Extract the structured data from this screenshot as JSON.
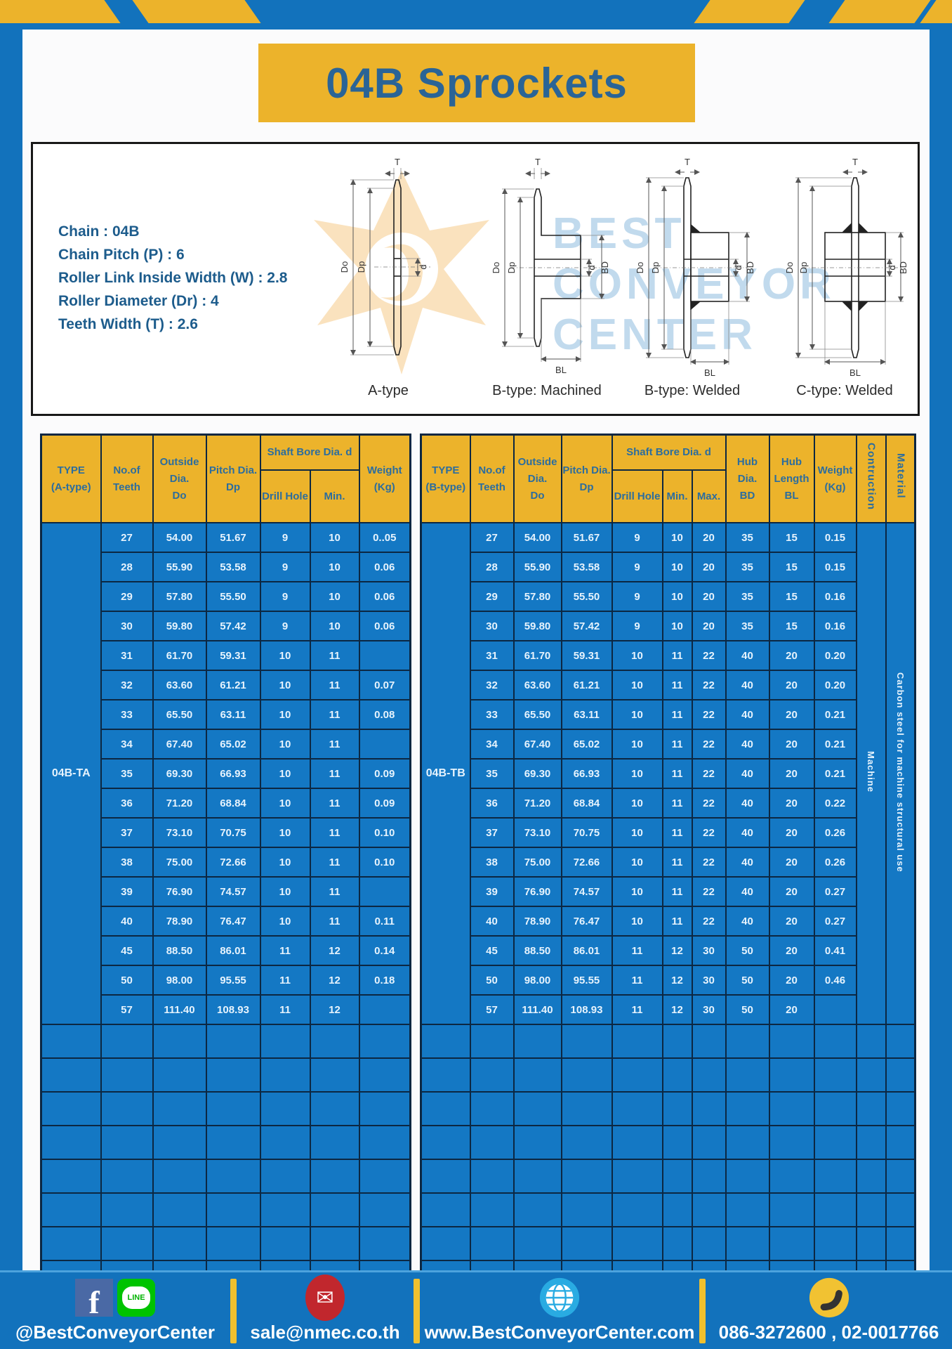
{
  "page": {
    "title": "04B Sprockets"
  },
  "colors": {
    "frame_blue": "#1272bc",
    "banner_yellow": "#ecb32b",
    "table_body_blue": "#1478c4",
    "table_border": "#0c2742",
    "header_text_blue": "#2c6d9e",
    "facebook_blue": "#4a69a5",
    "line_green": "#00c300",
    "mail_red": "#c1272d",
    "globe_blue": "#29abe2",
    "phone_yellow": "#f1c232"
  },
  "specs": {
    "lines": [
      "Chain : 04B",
      "Chain Pitch (P) : 6",
      "Roller Link Inside Width (W) : 2.8",
      "Roller Diameter (Dr) : 4",
      "Teeth Width (T) : 2.6"
    ]
  },
  "diagrams": {
    "watermark": {
      "line1": "BEST",
      "line2": "CONVEYOR",
      "line3": "CENTER"
    },
    "dims": {
      "t": "T",
      "dout": "Do",
      "dp": "Dp",
      "d": "d",
      "bd": "BD",
      "bl": "BL"
    },
    "captions": [
      "A-type",
      "B-type: Machined",
      "B-type: Welded",
      "C-type: Welded"
    ]
  },
  "table_a": {
    "headers": {
      "type1": "TYPE",
      "type2": "(A-type)",
      "teeth1": "No.of",
      "teeth2": "Teeth",
      "do1": "Outside",
      "do2": "Dia.",
      "do3": "Do",
      "dp1": "Pitch Dia.",
      "dp2": "Dp",
      "shaft": "Shaft Bore Dia. d",
      "drill": "Drill Hole",
      "min": "Min.",
      "weight1": "Weight",
      "weight2": "(Kg)"
    },
    "type_label": "04B-TA",
    "rows": [
      [
        "27",
        "54.00",
        "51.67",
        "9",
        "10",
        "0..05"
      ],
      [
        "28",
        "55.90",
        "53.58",
        "9",
        "10",
        "0.06"
      ],
      [
        "29",
        "57.80",
        "55.50",
        "9",
        "10",
        "0.06"
      ],
      [
        "30",
        "59.80",
        "57.42",
        "9",
        "10",
        "0.06"
      ],
      [
        "31",
        "61.70",
        "59.31",
        "10",
        "11",
        ""
      ],
      [
        "32",
        "63.60",
        "61.21",
        "10",
        "11",
        "0.07"
      ],
      [
        "33",
        "65.50",
        "63.11",
        "10",
        "11",
        "0.08"
      ],
      [
        "34",
        "67.40",
        "65.02",
        "10",
        "11",
        ""
      ],
      [
        "35",
        "69.30",
        "66.93",
        "10",
        "11",
        "0.09"
      ],
      [
        "36",
        "71.20",
        "68.84",
        "10",
        "11",
        "0.09"
      ],
      [
        "37",
        "73.10",
        "70.75",
        "10",
        "11",
        "0.10"
      ],
      [
        "38",
        "75.00",
        "72.66",
        "10",
        "11",
        "0.10"
      ],
      [
        "39",
        "76.90",
        "74.57",
        "10",
        "11",
        ""
      ],
      [
        "40",
        "78.90",
        "76.47",
        "10",
        "11",
        "0.11"
      ],
      [
        "45",
        "88.50",
        "86.01",
        "11",
        "12",
        "0.14"
      ],
      [
        "50",
        "98.00",
        "95.55",
        "11",
        "12",
        "0.18"
      ],
      [
        "57",
        "111.40",
        "108.93",
        "11",
        "12",
        ""
      ]
    ],
    "empty_row_count": 8
  },
  "table_b": {
    "headers": {
      "type1": "TYPE",
      "type2": "(B-type)",
      "teeth1": "No.of",
      "teeth2": "Teeth",
      "do1": "Outside",
      "do2": "Dia.",
      "do3": "Do",
      "dp1": "Pitch Dia.",
      "dp2": "Dp",
      "shaft": "Shaft Bore Dia. d",
      "drill": "Drill Hole",
      "min": "Min.",
      "max": "Max.",
      "hubdia1": "Hub Dia.",
      "hubdia2": "BD",
      "hublen1": "Hub",
      "hublen2": "Length",
      "hublen3": "BL",
      "weight1": "Weight",
      "weight2": "(Kg)",
      "construction": "Contruction",
      "material": "Material"
    },
    "type_label": "04B-TB",
    "construction_value": "Machine",
    "material_value": "Carbon steel for machine structural use",
    "rows": [
      [
        "27",
        "54.00",
        "51.67",
        "9",
        "10",
        "20",
        "35",
        "15",
        "0.15"
      ],
      [
        "28",
        "55.90",
        "53.58",
        "9",
        "10",
        "20",
        "35",
        "15",
        "0.15"
      ],
      [
        "29",
        "57.80",
        "55.50",
        "9",
        "10",
        "20",
        "35",
        "15",
        "0.16"
      ],
      [
        "30",
        "59.80",
        "57.42",
        "9",
        "10",
        "20",
        "35",
        "15",
        "0.16"
      ],
      [
        "31",
        "61.70",
        "59.31",
        "10",
        "11",
        "22",
        "40",
        "20",
        "0.20"
      ],
      [
        "32",
        "63.60",
        "61.21",
        "10",
        "11",
        "22",
        "40",
        "20",
        "0.20"
      ],
      [
        "33",
        "65.50",
        "63.11",
        "10",
        "11",
        "22",
        "40",
        "20",
        "0.21"
      ],
      [
        "34",
        "67.40",
        "65.02",
        "10",
        "11",
        "22",
        "40",
        "20",
        "0.21"
      ],
      [
        "35",
        "69.30",
        "66.93",
        "10",
        "11",
        "22",
        "40",
        "20",
        "0.21"
      ],
      [
        "36",
        "71.20",
        "68.84",
        "10",
        "11",
        "22",
        "40",
        "20",
        "0.22"
      ],
      [
        "37",
        "73.10",
        "70.75",
        "10",
        "11",
        "22",
        "40",
        "20",
        "0.26"
      ],
      [
        "38",
        "75.00",
        "72.66",
        "10",
        "11",
        "22",
        "40",
        "20",
        "0.26"
      ],
      [
        "39",
        "76.90",
        "74.57",
        "10",
        "11",
        "22",
        "40",
        "20",
        "0.27"
      ],
      [
        "40",
        "78.90",
        "76.47",
        "10",
        "11",
        "22",
        "40",
        "20",
        "0.27"
      ],
      [
        "45",
        "88.50",
        "86.01",
        "11",
        "12",
        "30",
        "50",
        "20",
        "0.41"
      ],
      [
        "50",
        "98.00",
        "95.55",
        "11",
        "12",
        "30",
        "50",
        "20",
        "0.46"
      ],
      [
        "57",
        "111.40",
        "108.93",
        "11",
        "12",
        "30",
        "50",
        "20",
        ""
      ]
    ],
    "empty_row_count": 8
  },
  "footer": {
    "social_label": "@BestConveyorCenter",
    "line_text": "LINE",
    "fb_letter": "f",
    "mail_glyph": "✉",
    "email": "sale@nmec.co.th",
    "website": "www.BestConveyorCenter.com",
    "phones": "086-3272600 , 02-0017766"
  }
}
